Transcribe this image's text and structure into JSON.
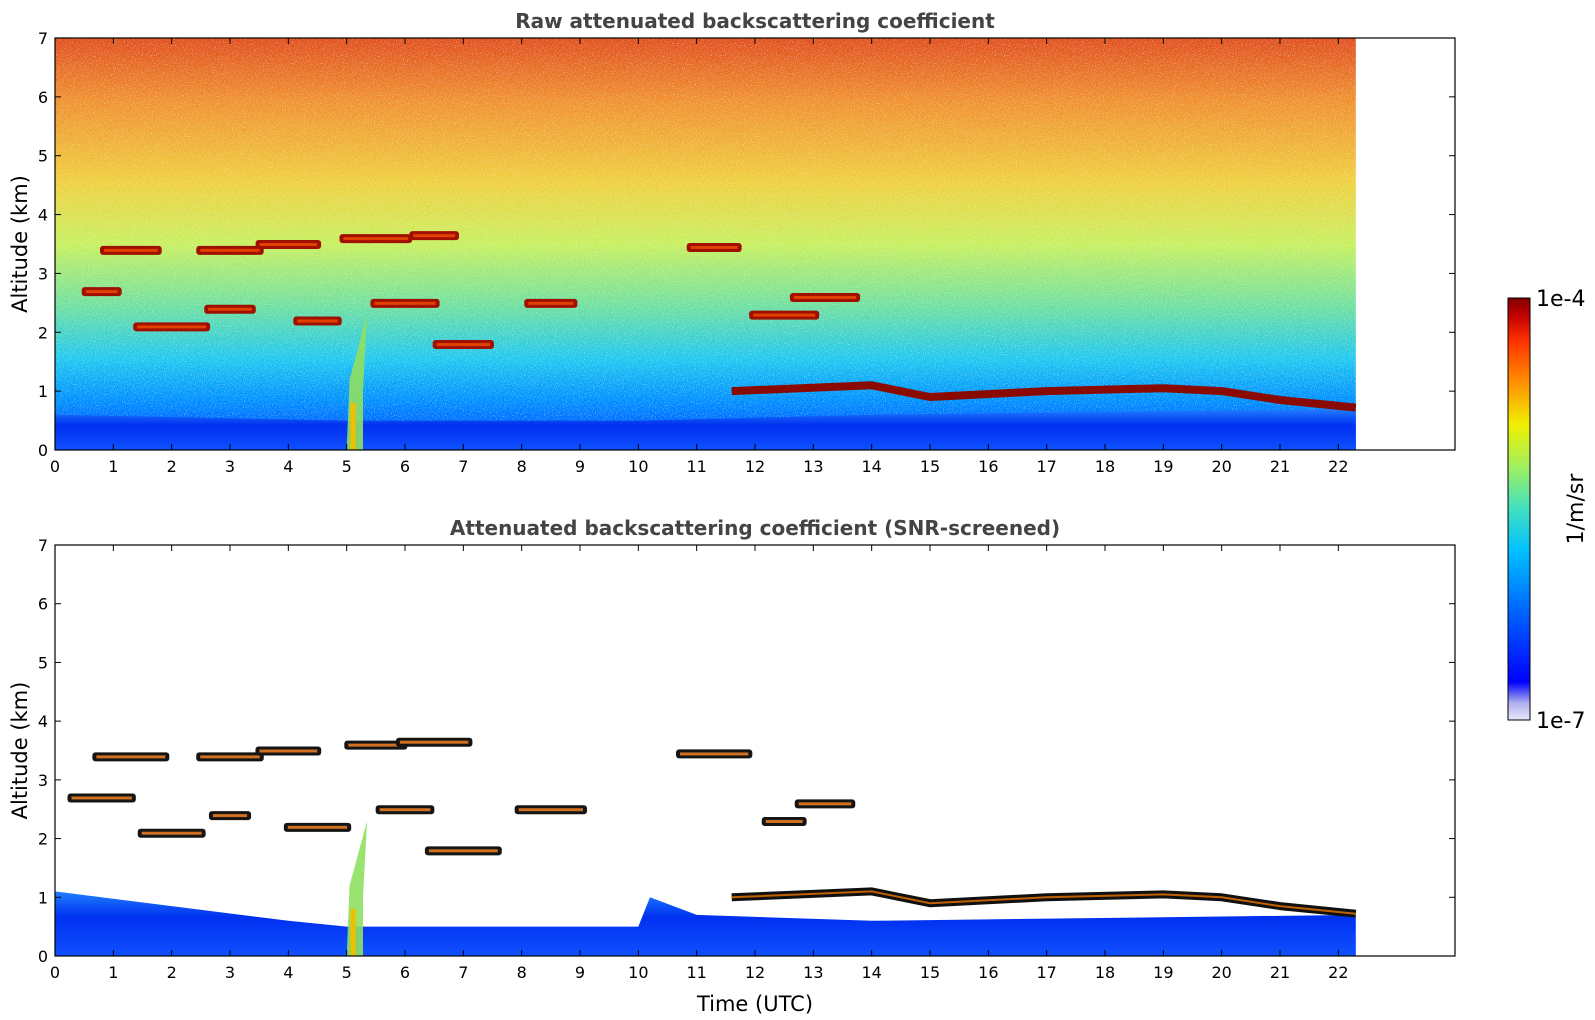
{
  "chart_data": [
    {
      "type": "heatmap",
      "title": "Raw attenuated backscattering coefficient",
      "xlabel": "",
      "ylabel": "Altitude (km)",
      "xlim": [
        0,
        24
      ],
      "ylim": [
        0,
        7
      ],
      "xticks": [
        "0",
        "1",
        "2",
        "3",
        "4",
        "5",
        "6",
        "7",
        "8",
        "9",
        "10",
        "11",
        "12",
        "13",
        "14",
        "15",
        "16",
        "17",
        "18",
        "19",
        "20",
        "21",
        "22"
      ],
      "yticks": [
        "0",
        "1",
        "2",
        "3",
        "4",
        "5",
        "6",
        "7"
      ],
      "data_end_time": 22.3,
      "features": {
        "boundary_layer_top_km": [
          [
            0,
            0.6
          ],
          [
            5,
            0.5
          ],
          [
            10,
            0.5
          ],
          [
            14,
            0.6
          ],
          [
            22.3,
            0.7
          ]
        ],
        "cloud_layer_km": [
          [
            11.6,
            1.0
          ],
          [
            14,
            1.1
          ],
          [
            15,
            0.9
          ],
          [
            17,
            1.0
          ],
          [
            19,
            1.05
          ],
          [
            20,
            1.0
          ],
          [
            21,
            0.85
          ],
          [
            22.3,
            0.72
          ]
        ],
        "mid_level_clouds_km": [
          [
            0.8,
            2.7
          ],
          [
            2.0,
            2.1
          ],
          [
            3.0,
            2.4
          ],
          [
            4.5,
            2.2
          ],
          [
            6.0,
            2.5
          ],
          [
            7.0,
            1.8
          ],
          [
            8.5,
            2.5
          ],
          [
            12.5,
            2.3
          ],
          [
            13.2,
            2.6
          ]
        ],
        "upper_clouds_km": [
          [
            1.3,
            3.4
          ],
          [
            3.0,
            3.4
          ],
          [
            4.0,
            3.5
          ],
          [
            5.5,
            3.6
          ],
          [
            6.5,
            3.65
          ],
          [
            11.3,
            3.45
          ]
        ],
        "aerosol_plume_time": 5.1
      }
    },
    {
      "type": "heatmap",
      "title": "Attenuated backscattering coefficient (SNR-screened)",
      "xlabel": "Time (UTC)",
      "ylabel": "Altitude (km)",
      "xlim": [
        0,
        24
      ],
      "ylim": [
        0,
        7
      ],
      "xticks": [
        "0",
        "1",
        "2",
        "3",
        "4",
        "5",
        "6",
        "7",
        "8",
        "9",
        "10",
        "11",
        "12",
        "13",
        "14",
        "15",
        "16",
        "17",
        "18",
        "19",
        "20",
        "21",
        "22"
      ],
      "yticks": [
        "0",
        "1",
        "2",
        "3",
        "4",
        "5",
        "6",
        "7"
      ],
      "data_end_time": 22.3
    }
  ],
  "colorbar": {
    "label": "1/m/sr",
    "max_label": "1e-4",
    "min_label": "1e-7",
    "scale": "log",
    "colormap": [
      "#e8e8f8",
      "#b0b0f0",
      "#0000ff",
      "#0060ff",
      "#00c0ff",
      "#40e0c0",
      "#a0f060",
      "#f0f000",
      "#ff9000",
      "#ff3000",
      "#c00000",
      "#800000"
    ]
  }
}
